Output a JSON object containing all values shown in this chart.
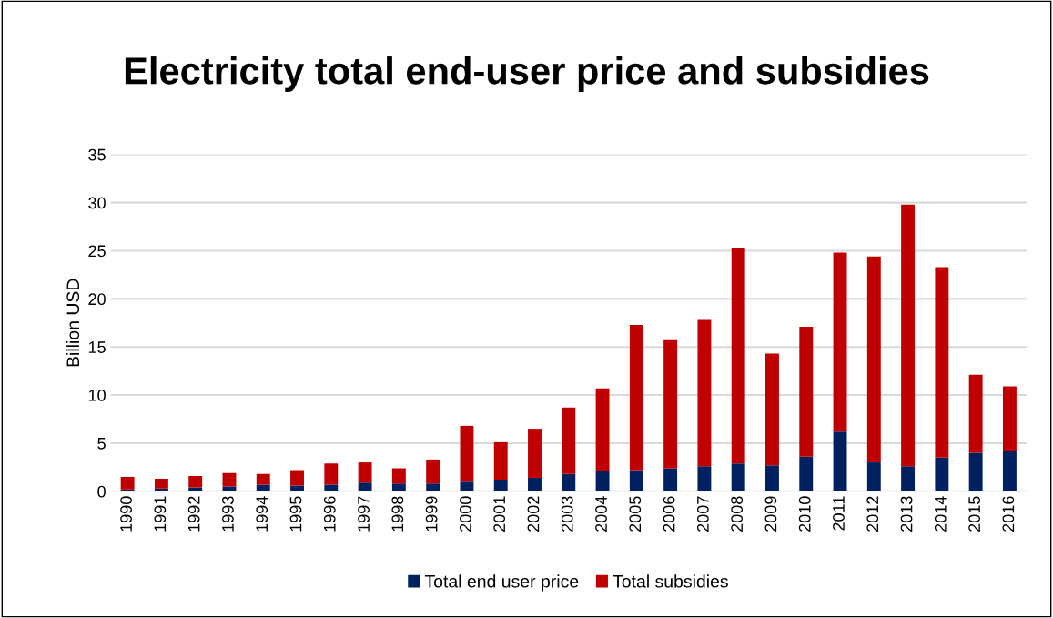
{
  "chart_data": {
    "type": "bar",
    "title": "Electricity total end-user price and subsidies",
    "ylabel": "Billion USD",
    "categories": [
      "1990",
      "1991",
      "1992",
      "1993",
      "1994",
      "1995",
      "1996",
      "1997",
      "1998",
      "1999",
      "2000",
      "2001",
      "2002",
      "2003",
      "2004",
      "2005",
      "2006",
      "2007",
      "2008",
      "2009",
      "2010",
      "2011",
      "2012",
      "2013",
      "2014",
      "2015",
      "2016"
    ],
    "stacked": true,
    "series": [
      {
        "name": "Total end user price",
        "color": "#002060",
        "values": [
          0.2,
          0.3,
          0.4,
          0.5,
          0.7,
          0.6,
          0.7,
          0.9,
          0.8,
          0.8,
          1.0,
          1.2,
          1.4,
          1.8,
          2.1,
          2.2,
          2.4,
          2.6,
          2.9,
          2.7,
          3.6,
          6.2,
          3.0,
          2.6,
          3.5,
          4.0,
          4.2
        ]
      },
      {
        "name": "Total subsidies",
        "color": "#c00000",
        "values": [
          1.3,
          1.0,
          1.2,
          1.4,
          1.1,
          1.6,
          2.2,
          2.1,
          1.6,
          2.5,
          5.8,
          3.9,
          5.1,
          6.9,
          8.6,
          15.1,
          13.3,
          15.2,
          22.4,
          11.6,
          13.5,
          18.6,
          21.4,
          27.2,
          19.8,
          8.1,
          6.7
        ]
      }
    ],
    "ylim": [
      0,
      35
    ],
    "yticks": [
      0,
      5,
      10,
      15,
      20,
      25,
      30,
      35
    ],
    "grid": "y",
    "legend": "bottom"
  }
}
